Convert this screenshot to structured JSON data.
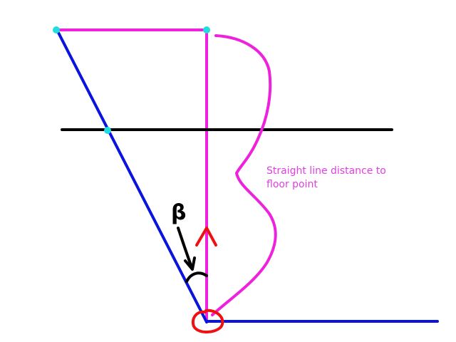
{
  "annotation": {
    "line1": "Straight line distance to",
    "line2": "floor point"
  },
  "labels": {
    "angle_symbol": "β"
  },
  "colors": {
    "magenta": "#ee22dd",
    "blue": "#0a14dc",
    "black": "#000000",
    "red": "#ee1111",
    "cyan": "#22dddd",
    "annotation_text": "#e040e0"
  }
}
